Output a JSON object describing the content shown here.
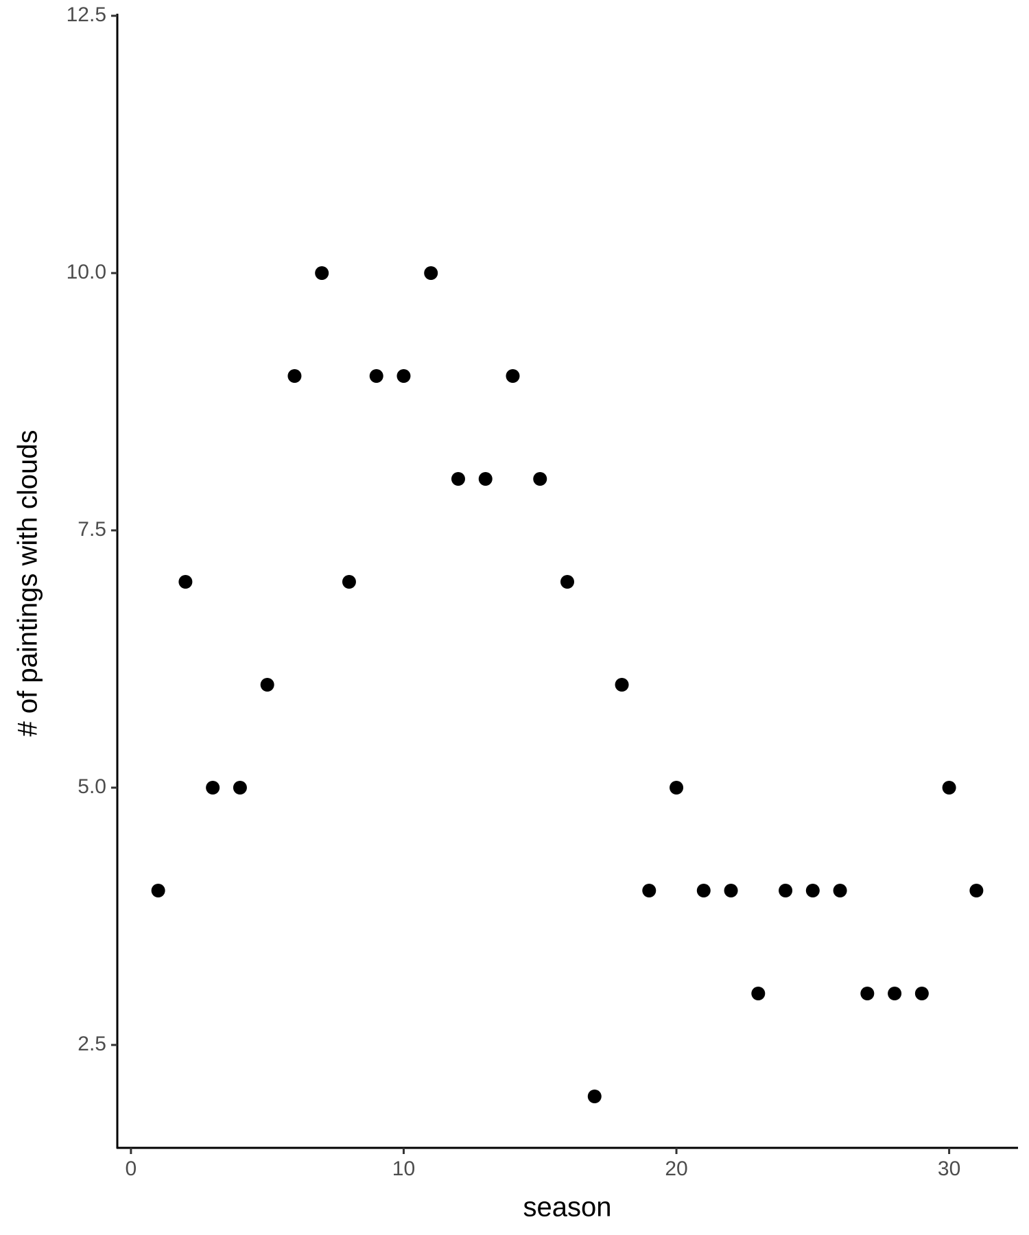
{
  "chart_data": {
    "type": "scatter",
    "x_label": "season",
    "y_label": "# of paintings with clouds",
    "x": [
      1,
      2,
      3,
      4,
      5,
      6,
      7,
      8,
      9,
      10,
      11,
      12,
      13,
      14,
      15,
      16,
      17,
      18,
      19,
      20,
      21,
      22,
      23,
      24,
      25,
      26,
      27,
      28,
      29,
      30,
      31
    ],
    "values": [
      4,
      7,
      5,
      5,
      6,
      9,
      10,
      7,
      9,
      9,
      10,
      8,
      8,
      9,
      8,
      7,
      2,
      6,
      4,
      5,
      4,
      4,
      3,
      4,
      4,
      4,
      3,
      3,
      3,
      5,
      4
    ],
    "color": "#000000",
    "xlim": [
      -0.5,
      32.5
    ],
    "xticks": [
      0,
      10,
      20,
      30
    ],
    "ylim": [
      1.5,
      12.5
    ],
    "yticks": [
      2.5,
      {
        "value": 5,
        "label": "5.0"
      },
      7.5,
      {
        "value": 10,
        "label": "10.0"
      },
      12.5
    ],
    "grid": false
  }
}
